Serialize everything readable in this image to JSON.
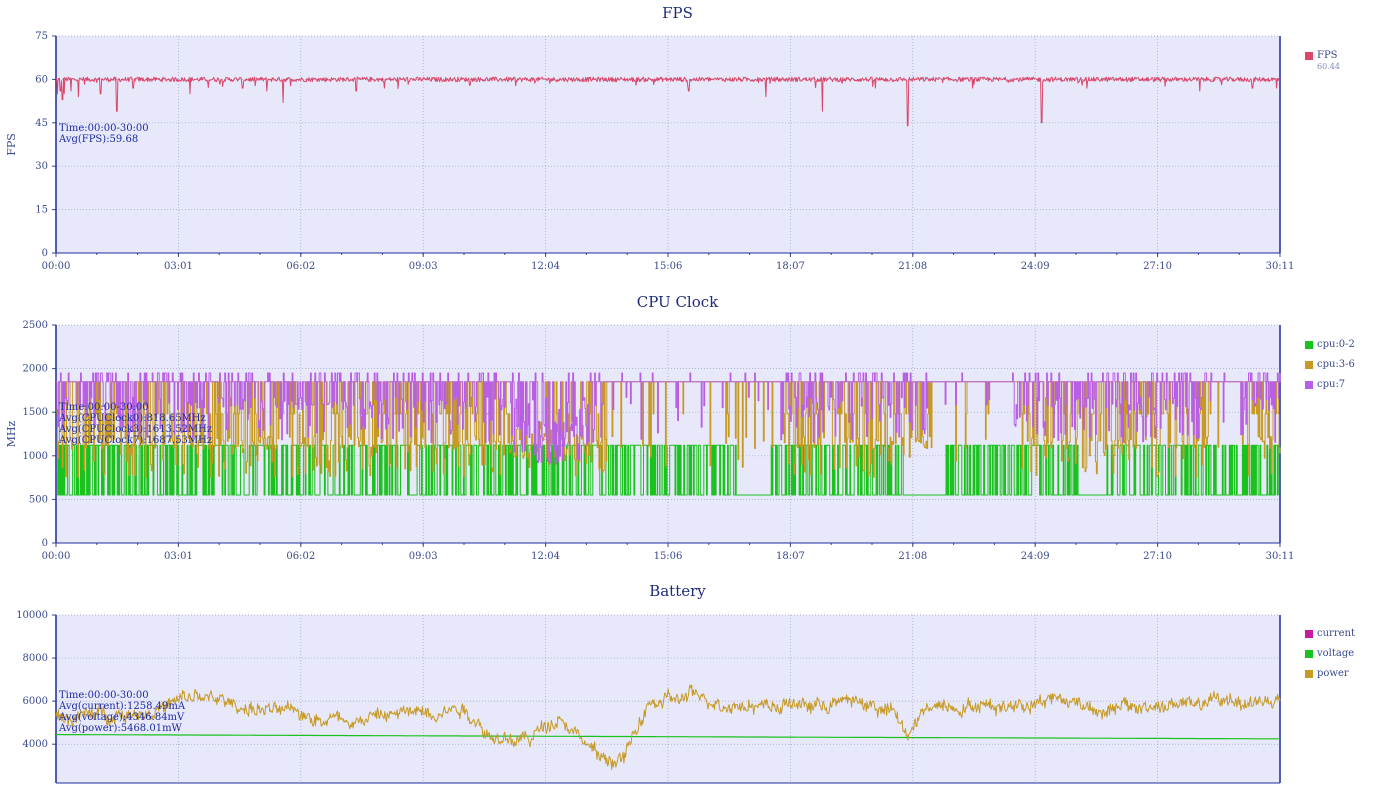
{
  "chart_data": [
    {
      "type": "line",
      "title": "FPS",
      "ylabel": "FPS",
      "ylim": [
        0,
        75
      ],
      "yticks": [
        "0",
        "15",
        "30",
        "45",
        "60",
        "75"
      ],
      "xtick_labels": [
        "00:00",
        "03:01",
        "06:02",
        "09:03",
        "12:04",
        "15:06",
        "18:07",
        "21:08",
        "24:09",
        "27:10",
        "30:11"
      ],
      "xrange_seconds": [
        0,
        1811
      ],
      "grid": true,
      "legend_position": "right",
      "series": [
        {
          "name": "FPS",
          "color": "#d9486a",
          "legend_value": "60.44",
          "baseline": 60,
          "noise": 0.8,
          "dips_time_value": [
            [
              0.03,
              55
            ],
            [
              0.11,
              56
            ],
            [
              0.16,
              53
            ],
            [
              0.2,
              55
            ],
            [
              0.37,
              56
            ],
            [
              0.55,
              54
            ],
            [
              1.1,
              55
            ],
            [
              1.5,
              49
            ],
            [
              1.9,
              57
            ],
            [
              3.3,
              55
            ],
            [
              4.6,
              57
            ],
            [
              5.2,
              56
            ],
            [
              5.6,
              52
            ],
            [
              7.4,
              56
            ],
            [
              8.1,
              57
            ],
            [
              10.2,
              58
            ],
            [
              14.3,
              58
            ],
            [
              15.6,
              56
            ],
            [
              17.5,
              54
            ],
            [
              18.9,
              49
            ],
            [
              20.2,
              57
            ],
            [
              21.0,
              44
            ],
            [
              22.6,
              57
            ],
            [
              24.3,
              45
            ],
            [
              25.3,
              58
            ],
            [
              28.2,
              56
            ],
            [
              29.5,
              57
            ],
            [
              30.1,
              57
            ]
          ]
        }
      ],
      "stats_text": [
        "Time:00:00-30:00",
        "Avg(FPS):59.68"
      ]
    },
    {
      "type": "line",
      "title": "CPU Clock",
      "ylabel": "MHz",
      "ylim": [
        0,
        2500
      ],
      "yticks": [
        "0",
        "500",
        "1000",
        "1500",
        "2000",
        "2500"
      ],
      "xtick_labels": [
        "00:00",
        "03:01",
        "06:02",
        "09:03",
        "12:04",
        "15:06",
        "18:07",
        "21:08",
        "24:09",
        "27:10",
        "30:11"
      ],
      "xrange_seconds": [
        0,
        1811
      ],
      "grid": true,
      "legend_position": "right",
      "series": [
        {
          "name": "cpu:0-2",
          "color": "#19c21c",
          "levels": [
            550,
            1120
          ],
          "high_prob": 0.5
        },
        {
          "name": "cpu:3-6",
          "color": "#c69a23",
          "levels": [
            1850,
            1480,
            1150,
            900
          ],
          "main_level": 1850
        },
        {
          "name": "cpu:7",
          "color": "#b95fe3",
          "levels": [
            1850,
            1950,
            1600,
            1300
          ],
          "main_level": 1850
        }
      ],
      "stats_text": [
        "Time:00:00-30:00",
        "Avg(CPUClock0):818.65MHz",
        "Avg(CPUClock3):1613.52MHz",
        "Avg(CPUClock7):1687.53MHz"
      ]
    },
    {
      "type": "line",
      "title": "Battery",
      "ylabel": "",
      "ylim": [
        2200,
        10000
      ],
      "yticks": [
        "4000",
        "6000",
        "8000",
        "10000"
      ],
      "yticks_values": [
        4000,
        6000,
        8000,
        10000
      ],
      "xrange_seconds": [
        0,
        1811
      ],
      "grid": true,
      "legend_position": "right",
      "series": [
        {
          "name": "current",
          "color": "#c81aa0"
        },
        {
          "name": "voltage",
          "color": "#19c21c",
          "start": 4450,
          "end": 4250
        },
        {
          "name": "power",
          "color": "#c69a23",
          "trend_time_value": [
            [
              0,
              5200
            ],
            [
              1.2,
              5400
            ],
            [
              2.4,
              5600
            ],
            [
              3.5,
              6200
            ],
            [
              4.5,
              5800
            ],
            [
              5.8,
              5400
            ],
            [
              7.5,
              5200
            ],
            [
              8.9,
              5500
            ],
            [
              10.0,
              5800
            ],
            [
              11.0,
              4000
            ],
            [
              11.7,
              4300
            ],
            [
              12.4,
              5400
            ],
            [
              12.9,
              4500
            ],
            [
              13.4,
              3300
            ],
            [
              14.0,
              3300
            ],
            [
              14.6,
              5800
            ],
            [
              15.7,
              6200
            ],
            [
              16.8,
              5900
            ],
            [
              18.5,
              5800
            ],
            [
              19.8,
              6000
            ],
            [
              20.6,
              5500
            ],
            [
              21.0,
              4400
            ],
            [
              21.6,
              5900
            ],
            [
              23.5,
              5800
            ],
            [
              24.5,
              6200
            ],
            [
              26.0,
              5600
            ],
            [
              27.5,
              5800
            ],
            [
              29.0,
              6000
            ],
            [
              30.2,
              6000
            ]
          ]
        }
      ],
      "stats_text": [
        "Time:00:00-30:00",
        "Avg(current):1258.49mA",
        "Avg(voltage):4346.84mV",
        "Avg(power):5468.01mW"
      ]
    }
  ]
}
